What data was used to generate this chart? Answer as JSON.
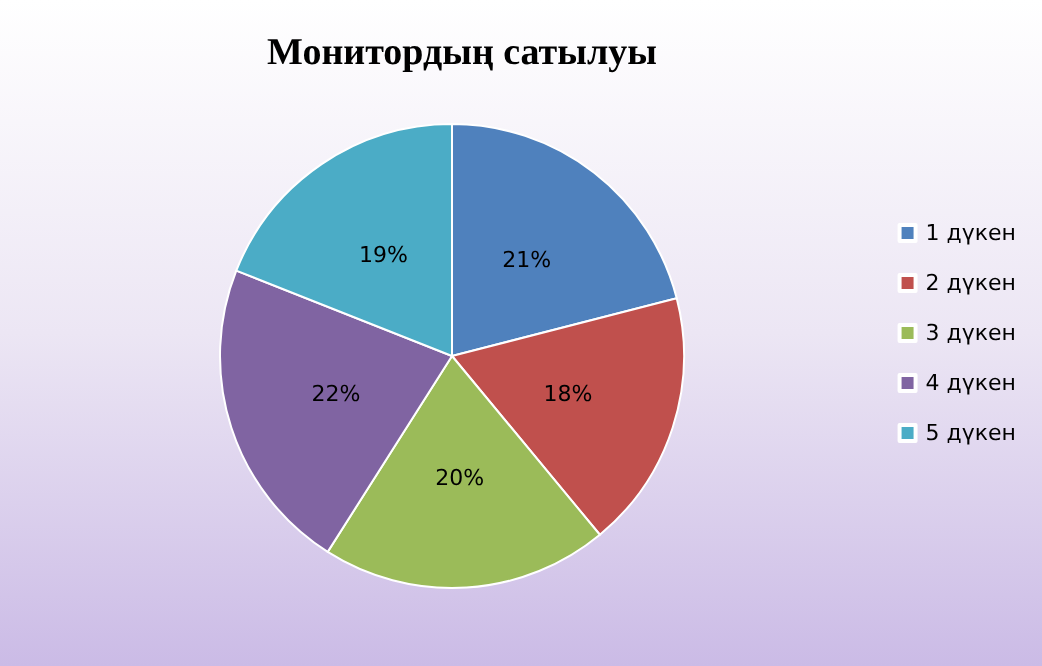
{
  "chart_data": {
    "type": "pie",
    "title": "Монитордың сатылуы",
    "categories": [
      "1 дүкен",
      "2 дүкен",
      "3 дүкен",
      "4 дүкен",
      "5 дүкен"
    ],
    "values": [
      21,
      18,
      20,
      22,
      19
    ],
    "value_labels": [
      "21%",
      "18%",
      "20%",
      "22%",
      "19%"
    ],
    "colors": [
      "#4f81bd",
      "#c0504d",
      "#9bbb59",
      "#8064a2",
      "#4bacc6"
    ],
    "legend": "right"
  }
}
